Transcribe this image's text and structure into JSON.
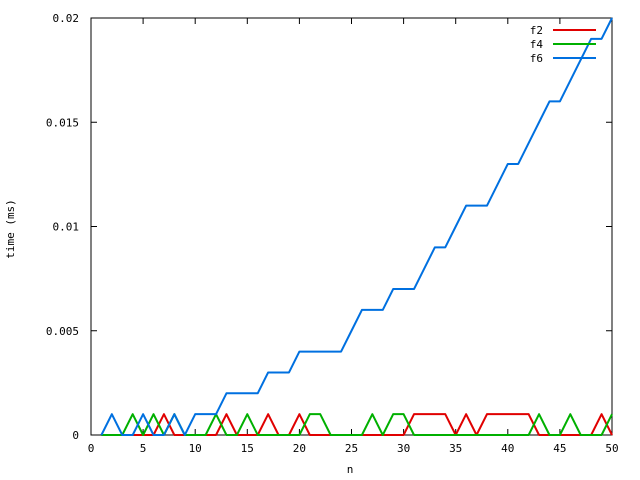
{
  "chart_data": {
    "type": "line",
    "xlabel": "n",
    "ylabel": "time (ms)",
    "xlim": [
      0,
      50
    ],
    "ylim": [
      0,
      0.02
    ],
    "x_ticks": [
      0,
      5,
      10,
      15,
      20,
      25,
      30,
      35,
      40,
      45,
      50
    ],
    "x_tick_labels": [
      "0",
      "5",
      "10",
      "15",
      "20",
      "25",
      "30",
      "35",
      "40",
      "45",
      "50"
    ],
    "y_ticks": [
      0,
      0.005,
      0.01,
      0.015,
      0.02
    ],
    "y_tick_labels": [
      "0",
      "0.005",
      "0.01",
      "0.015",
      "0.02"
    ],
    "grid": false,
    "legend_position": "top-right",
    "x": [
      1,
      2,
      3,
      4,
      5,
      6,
      7,
      8,
      9,
      10,
      11,
      12,
      13,
      14,
      15,
      16,
      17,
      18,
      19,
      20,
      21,
      22,
      23,
      24,
      25,
      26,
      27,
      28,
      29,
      30,
      31,
      32,
      33,
      34,
      35,
      36,
      37,
      38,
      39,
      40,
      41,
      42,
      43,
      44,
      45,
      46,
      47,
      48,
      49,
      50
    ],
    "series": [
      {
        "name": "f2",
        "color": "#e00000",
        "values": [
          0,
          0,
          0,
          0,
          0,
          0,
          0.001,
          0,
          0,
          0,
          0,
          0,
          0.001,
          0,
          0,
          0,
          0.001,
          0,
          0,
          0.001,
          0,
          0,
          0,
          0,
          0,
          0,
          0,
          0,
          0,
          0,
          0.001,
          0.001,
          0.001,
          0.001,
          0,
          0.001,
          0,
          0.001,
          0.001,
          0.001,
          0.001,
          0.001,
          0,
          0,
          0,
          0,
          0,
          0,
          0.001,
          0
        ]
      },
      {
        "name": "f4",
        "color": "#00b000",
        "values": [
          0,
          0,
          0,
          0.001,
          0,
          0.001,
          0,
          0.001,
          0,
          0,
          0,
          0.001,
          0,
          0,
          0.001,
          0,
          0,
          0,
          0,
          0,
          0.001,
          0.001,
          0,
          0,
          0,
          0,
          0.001,
          0,
          0.001,
          0.001,
          0,
          0,
          0,
          0,
          0,
          0,
          0,
          0,
          0,
          0,
          0,
          0,
          0.001,
          0,
          0,
          0.001,
          0,
          0,
          0,
          0.001
        ]
      },
      {
        "name": "f6",
        "color": "#0070e0",
        "values": [
          0,
          0.001,
          0,
          0,
          0.001,
          0,
          0,
          0.001,
          0,
          0.001,
          0.001,
          0.001,
          0.002,
          0.002,
          0.002,
          0.002,
          0.003,
          0.003,
          0.003,
          0.004,
          0.004,
          0.004,
          0.004,
          0.004,
          0.005,
          0.006,
          0.006,
          0.006,
          0.007,
          0.007,
          0.007,
          0.008,
          0.009,
          0.009,
          0.01,
          0.011,
          0.011,
          0.011,
          0.012,
          0.013,
          0.013,
          0.014,
          0.015,
          0.016,
          0.016,
          0.017,
          0.018,
          0.019,
          0.019,
          0.02
        ]
      }
    ]
  }
}
